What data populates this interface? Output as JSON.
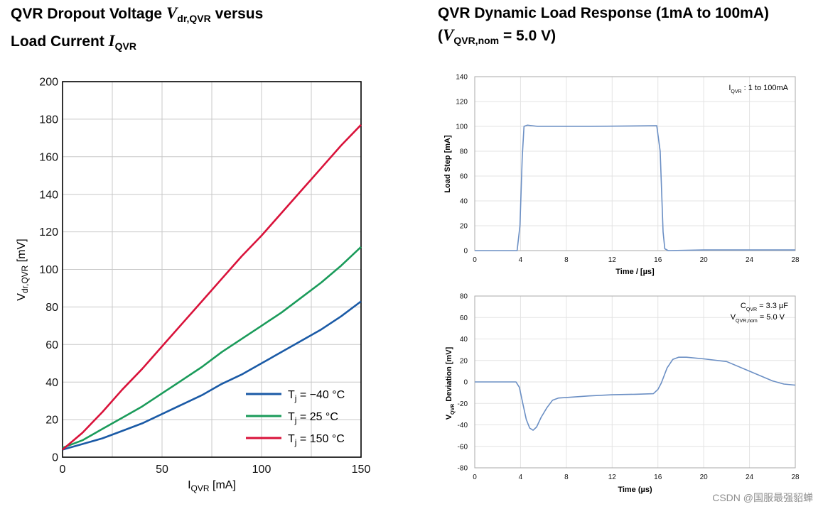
{
  "left_title": {
    "line1_prefix": "QVR Dropout Voltage ",
    "sym": "V",
    "sym_sub": "dr,QVR",
    "line1_suffix": " versus",
    "line2_prefix": "Load Current ",
    "sym2": "I",
    "sym2_sub": "QVR"
  },
  "right_title": {
    "line1": "QVR Dynamic Load Response (1mA to 100mA)",
    "line2_open": "(",
    "sym": "V",
    "sym_sub": "QVR,nom",
    "line2_rest": " = 5.0 V)"
  },
  "watermark": "CSDN @国服最强貂蝉",
  "chart_data": [
    {
      "type": "line",
      "xlabel": {
        "main": "I",
        "sub": "QVR",
        "unit": " [mA]"
      },
      "ylabel": {
        "main": "V",
        "sub": "dr,QVR",
        "unit": " [mV]"
      },
      "xlim": [
        0,
        150
      ],
      "ylim": [
        0,
        200
      ],
      "xticks": [
        0,
        50,
        100,
        150
      ],
      "yticks": [
        0,
        20,
        40,
        60,
        80,
        100,
        120,
        140,
        160,
        180,
        200
      ],
      "grid": true,
      "legend_position": "bottom-right",
      "colors": [
        "#1a5aa6",
        "#1a9b5a",
        "#d9123a"
      ],
      "series": [
        {
          "name": "Tj = −40 °C",
          "legend_main": "T",
          "legend_sub": "j",
          "legend_rest": " = −40 °C",
          "x": [
            0,
            10,
            20,
            30,
            40,
            50,
            60,
            70,
            80,
            90,
            100,
            110,
            120,
            130,
            140,
            150
          ],
          "y": [
            4,
            7,
            10,
            14,
            18,
            23,
            28,
            33,
            39,
            44,
            50,
            56,
            62,
            68,
            75,
            83
          ]
        },
        {
          "name": "Tj = 25 °C",
          "legend_main": "T",
          "legend_sub": "j",
          "legend_rest": " = 25 °C",
          "x": [
            0,
            10,
            20,
            30,
            40,
            50,
            60,
            70,
            80,
            90,
            100,
            110,
            120,
            130,
            140,
            150
          ],
          "y": [
            5,
            9,
            15,
            21,
            27,
            34,
            41,
            48,
            56,
            63,
            70,
            77,
            85,
            93,
            102,
            112
          ]
        },
        {
          "name": "Tj = 150 °C",
          "legend_main": "T",
          "legend_sub": "j",
          "legend_rest": " = 150 °C",
          "x": [
            0,
            10,
            20,
            30,
            40,
            50,
            60,
            70,
            80,
            90,
            100,
            110,
            120,
            130,
            140,
            150
          ],
          "y": [
            4,
            13,
            24,
            36,
            47,
            59,
            71,
            83,
            95,
            107,
            118,
            130,
            142,
            154,
            166,
            177
          ]
        }
      ]
    },
    {
      "type": "line",
      "xlabel": {
        "text": "Time / [µs]"
      },
      "ylabel": {
        "text": "Load Step  [mA]"
      },
      "xlim": [
        0,
        28
      ],
      "ylim": [
        0,
        140
      ],
      "xticks": [
        0,
        4,
        8,
        12,
        16,
        20,
        24,
        28
      ],
      "yticks": [
        0,
        20,
        40,
        60,
        80,
        100,
        120,
        140
      ],
      "grid": true,
      "annotation": {
        "main": "I",
        "sub": "QVR",
        "rest": " :  1 to 100mA"
      },
      "colors": [
        "#6b8fc4"
      ],
      "series": [
        {
          "x": [
            0,
            3.7,
            3.95,
            4.15,
            4.3,
            4.6,
            5.5,
            10,
            15.9,
            16.2,
            16.45,
            16.6,
            16.9,
            20,
            28
          ],
          "y": [
            0,
            0,
            20,
            75,
            100,
            101,
            100,
            100,
            100.5,
            80,
            15,
            1.5,
            0,
            0.5,
            0.5
          ]
        }
      ]
    },
    {
      "type": "line",
      "xlabel": {
        "text": "Time (µs)"
      },
      "ylabel": {
        "main": "V",
        "sub": "QVR",
        "unit": " Deviation  [mV]"
      },
      "xlim": [
        0,
        28
      ],
      "ylim": [
        -80,
        80
      ],
      "xticks": [
        0,
        4,
        8,
        12,
        16,
        20,
        24,
        28
      ],
      "yticks": [
        -80,
        -60,
        -40,
        -20,
        0,
        20,
        40,
        60,
        80
      ],
      "grid": true,
      "annotation1": {
        "main": "C",
        "sub": "QVR",
        "rest": " = 3.3 µF"
      },
      "annotation2": {
        "main": "V",
        "sub": "QVR,nom",
        "rest": " = 5.0 V"
      },
      "colors": [
        "#6b8fc4"
      ],
      "series": [
        {
          "x": [
            0,
            3.6,
            3.9,
            4.2,
            4.5,
            4.8,
            5.1,
            5.4,
            5.8,
            6.3,
            6.8,
            7.3,
            8,
            10,
            12,
            14,
            15.6,
            16.0,
            16.3,
            16.8,
            17.3,
            17.8,
            18.5,
            20,
            22,
            24,
            26,
            27,
            28
          ],
          "y": [
            0,
            0,
            -5,
            -20,
            -35,
            -43,
            -45,
            -42,
            -33,
            -24,
            -17,
            -15,
            -14.5,
            -13,
            -12,
            -11.5,
            -11,
            -7,
            -1,
            13,
            21,
            23,
            23,
            21.5,
            19,
            10,
            1,
            -2,
            -3
          ]
        }
      ]
    }
  ]
}
